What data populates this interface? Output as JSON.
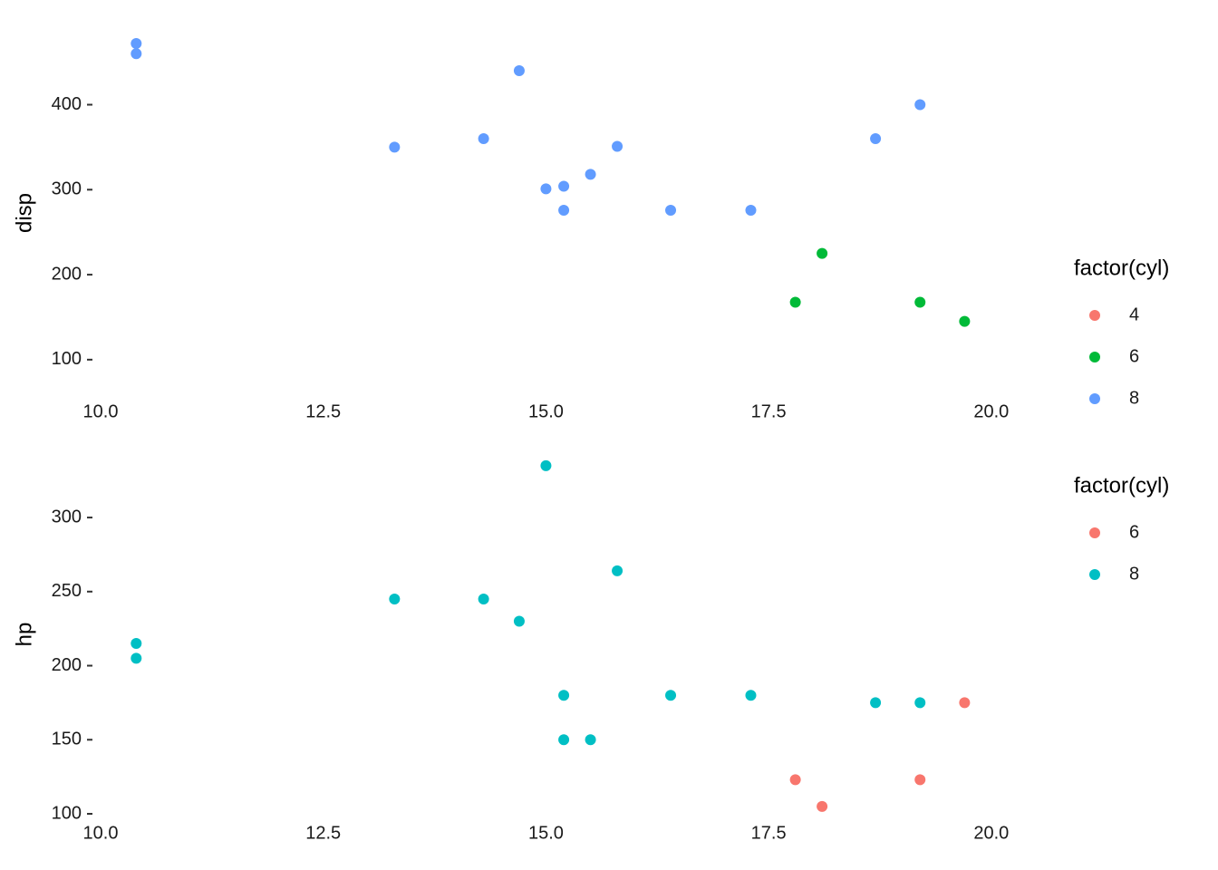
{
  "chart_data": [
    {
      "type": "scatter",
      "y_label": "disp",
      "legend_title": "factor(cyl)",
      "xlim": [
        10,
        20.5
      ],
      "ylim": [
        70,
        480
      ],
      "xticks": [
        {
          "value": 10,
          "label": "10.0"
        },
        12.5,
        {
          "value": 15,
          "label": "15.0"
        },
        17.5,
        {
          "value": 20,
          "label": "20.0"
        }
      ],
      "yticks": [
        100,
        200,
        300,
        400
      ],
      "series": [
        {
          "name": "4",
          "color": "#F8766D",
          "x": [],
          "values": []
        },
        {
          "name": "6",
          "color": "#00BA38",
          "x": [
            17.8,
            18.1,
            19.2,
            19.7
          ],
          "values": [
            167.6,
            225,
            167.6,
            145
          ]
        },
        {
          "name": "8",
          "color": "#619CFF",
          "x": [
            10.4,
            10.4,
            14.7,
            13.3,
            14.3,
            15.8,
            15.0,
            15.2,
            15.5,
            15.2,
            16.4,
            17.3,
            18.7,
            19.2
          ],
          "values": [
            472,
            460,
            440,
            350,
            360,
            351,
            301,
            304,
            318,
            275.8,
            275.8,
            275.8,
            360,
            400
          ]
        }
      ]
    },
    {
      "type": "scatter",
      "y_label": "hp",
      "legend_title": "factor(cyl)",
      "xlim": [
        10,
        20.5
      ],
      "ylim": [
        100,
        345
      ],
      "xticks": [
        {
          "value": 10,
          "label": "10.0"
        },
        12.5,
        {
          "value": 15,
          "label": "15.0"
        },
        17.5,
        {
          "value": 20,
          "label": "20.0"
        }
      ],
      "yticks": [
        100,
        150,
        200,
        250,
        300
      ],
      "series": [
        {
          "name": "6",
          "color": "#F8766D",
          "x": [
            19.7,
            17.8,
            19.2,
            18.1
          ],
          "values": [
            175,
            123,
            123,
            105
          ]
        },
        {
          "name": "8",
          "color": "#00BFC4",
          "x": [
            15.0,
            15.8,
            13.3,
            14.3,
            14.7,
            10.4,
            10.4,
            15.2,
            16.4,
            17.3,
            18.7,
            19.2,
            15.2,
            15.5
          ],
          "values": [
            335,
            264,
            245,
            245,
            230,
            215,
            205,
            180,
            180,
            180,
            175,
            175,
            150,
            150
          ]
        }
      ]
    }
  ]
}
